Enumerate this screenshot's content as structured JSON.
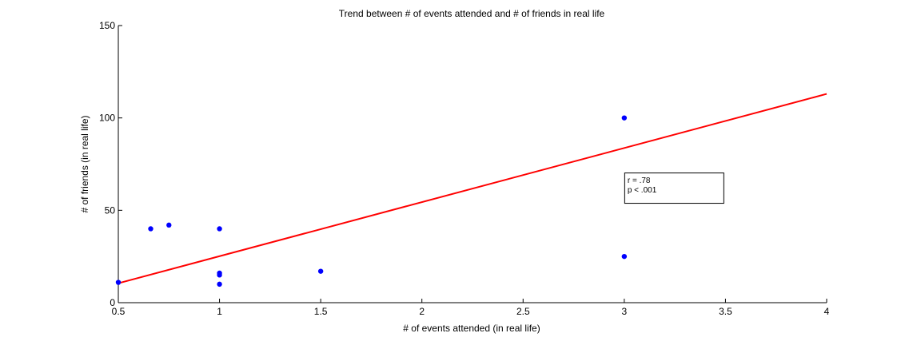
{
  "chart_data": {
    "type": "scatter",
    "title": "Trend between # of events attended and # of friends in real life",
    "xlabel": "# of events attended (in real life)",
    "ylabel": "# of friends (in real life)",
    "xlim": [
      0.5,
      4
    ],
    "ylim": [
      0,
      150
    ],
    "xticks": [
      0.5,
      1,
      1.5,
      2,
      2.5,
      3,
      3.5,
      4
    ],
    "xtick_labels": [
      "0.5",
      "1",
      "1.5",
      "2",
      "2.5",
      "3",
      "3.5",
      "4"
    ],
    "yticks": [
      0,
      50,
      100,
      150
    ],
    "ytick_labels": [
      "0",
      "50",
      "100",
      "150"
    ],
    "grid": false,
    "series": [
      {
        "type": "scatter",
        "color": "#0000ff",
        "points": [
          {
            "x": 0.5,
            "y": 11
          },
          {
            "x": 0.66,
            "y": 40
          },
          {
            "x": 0.75,
            "y": 42
          },
          {
            "x": 1,
            "y": 40
          },
          {
            "x": 1,
            "y": 16
          },
          {
            "x": 1,
            "y": 15
          },
          {
            "x": 1,
            "y": 10
          },
          {
            "x": 1.5,
            "y": 17
          },
          {
            "x": 3,
            "y": 100
          },
          {
            "x": 3,
            "y": 25
          }
        ]
      },
      {
        "type": "line",
        "color": "#ff0000",
        "points": [
          {
            "x": 0.5,
            "y": 10.5
          },
          {
            "x": 4,
            "y": 113
          }
        ]
      }
    ],
    "annotation": {
      "lines": [
        "r = .78",
        "p < .001"
      ],
      "anchor": {
        "x": 3,
        "y": 70
      }
    }
  }
}
